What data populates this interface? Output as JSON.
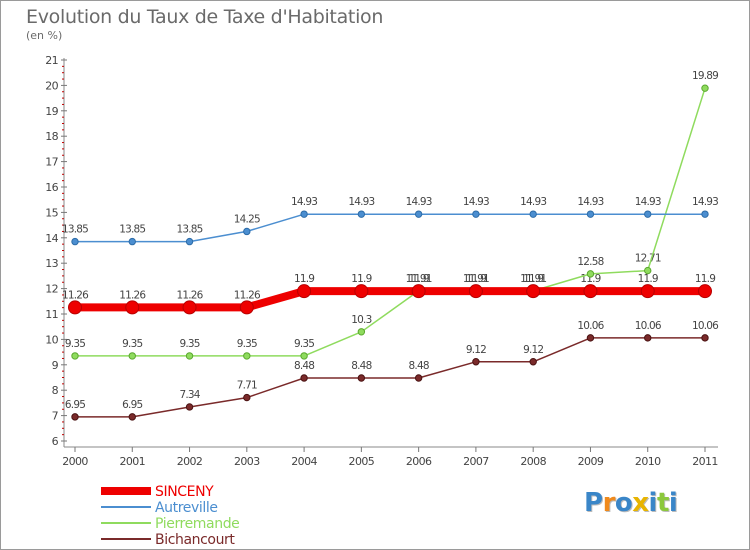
{
  "chart_data": {
    "type": "line",
    "title": "Evolution du Taux de Taxe d'Habitation",
    "subtitle": "(en %)",
    "xlabel": "",
    "ylabel": "",
    "x": [
      "2000",
      "2001",
      "2002",
      "2003",
      "2004",
      "2005",
      "2006",
      "2007",
      "2008",
      "2009",
      "2010",
      "2011"
    ],
    "ylim": [
      6,
      21
    ],
    "yticks": [
      "6",
      "7",
      "8",
      "9",
      "10",
      "11",
      "12",
      "13",
      "14",
      "15",
      "16",
      "17",
      "18",
      "19",
      "20",
      "21"
    ],
    "grid": false,
    "legend_position": "bottom-left",
    "series": [
      {
        "name": "SINCENY",
        "color": "#ee0000",
        "labels": [
          "11.26",
          "11.26",
          "11.26",
          "11.26",
          "11.9",
          "11.9",
          "11.9",
          "11.9",
          "11.9",
          "11.9",
          "11.9",
          "11.9"
        ],
        "values": [
          11.26,
          11.26,
          11.26,
          11.26,
          11.9,
          11.9,
          11.9,
          11.9,
          11.9,
          11.9,
          11.9,
          11.9
        ]
      },
      {
        "name": "Autreville",
        "color": "#4b8ed0",
        "labels": [
          "13.85",
          "13.85",
          "13.85",
          "14.25",
          "14.93",
          "14.93",
          "14.93",
          "14.93",
          "14.93",
          "14.93",
          "14.93",
          "14.93"
        ],
        "values": [
          13.85,
          13.85,
          13.85,
          14.25,
          14.93,
          14.93,
          14.93,
          14.93,
          14.93,
          14.93,
          14.93,
          14.93
        ]
      },
      {
        "name": "Pierremande",
        "color": "#8fdb5e",
        "labels": [
          "9.35",
          "9.35",
          "9.35",
          "9.35",
          "9.35",
          "10.3",
          "11.91",
          "11.91",
          "11.91",
          "12.58",
          "12.71",
          "19.89"
        ],
        "values": [
          9.35,
          9.35,
          9.35,
          9.35,
          9.35,
          10.3,
          11.91,
          11.91,
          11.91,
          12.58,
          12.71,
          19.89
        ]
      },
      {
        "name": "Bichancourt",
        "color": "#7a2a2a",
        "labels": [
          "6.95",
          "6.95",
          "7.34",
          "7.71",
          "8.48",
          "8.48",
          "8.48",
          "9.12",
          "9.12",
          "10.06",
          "10.06",
          "10.06"
        ],
        "values": [
          6.95,
          6.95,
          7.34,
          7.71,
          8.48,
          8.48,
          8.48,
          9.12,
          9.12,
          10.06,
          10.06,
          10.06
        ]
      }
    ]
  },
  "logo": {
    "text": "Proxiti",
    "letters": [
      {
        "ch": "P",
        "color": "#3a86c8"
      },
      {
        "ch": "r",
        "color": "#f08a1c"
      },
      {
        "ch": "o",
        "color": "#3a86c8"
      },
      {
        "ch": "x",
        "color": "#e8b400"
      },
      {
        "ch": "i",
        "color": "#3a86c8"
      },
      {
        "ch": "t",
        "color": "#8cc83c"
      },
      {
        "ch": "i",
        "color": "#3a86c8"
      }
    ]
  }
}
